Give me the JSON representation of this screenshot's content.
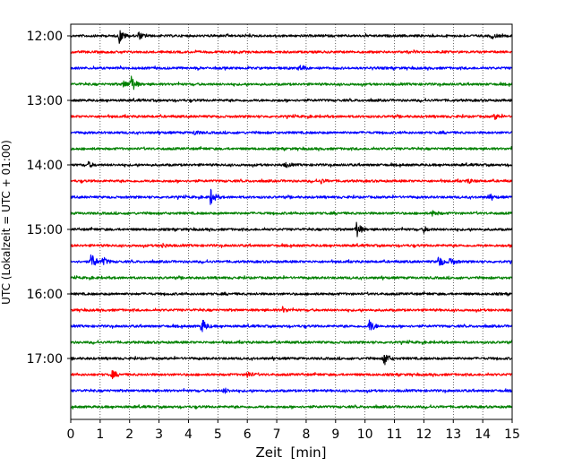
{
  "chart_data": {
    "type": "line",
    "title": "",
    "xlabel": "Zeit  [min]",
    "ylabel": "UTC (Lokalzeit = UTC + 01:00)",
    "xlim": [
      0,
      15
    ],
    "x_ticks": [
      0,
      1,
      2,
      3,
      4,
      5,
      6,
      7,
      8,
      9,
      10,
      11,
      12,
      13,
      14,
      15
    ],
    "x_grid": "vertical dotted at each minute",
    "y_ticks": [
      "12:00",
      "13:00",
      "14:00",
      "15:00",
      "16:00",
      "17:00"
    ],
    "colors": [
      "#000000",
      "#ff0000",
      "#0000ff",
      "#008000"
    ],
    "series": [
      {
        "start": "12:00",
        "color": "#000000",
        "events": [
          {
            "t": 1.65,
            "amp": 8
          },
          {
            "t": 2.3,
            "amp": 4
          },
          {
            "t": 14.3,
            "amp": 3
          }
        ]
      },
      {
        "start": "12:15",
        "color": "#ff0000",
        "events": []
      },
      {
        "start": "12:30",
        "color": "#0000ff",
        "events": [
          {
            "t": 7.8,
            "amp": 3
          }
        ]
      },
      {
        "start": "12:45",
        "color": "#008000",
        "events": [
          {
            "t": 2.05,
            "amp": 10
          },
          {
            "t": 1.8,
            "amp": 4
          }
        ]
      },
      {
        "start": "13:00",
        "color": "#000000",
        "events": []
      },
      {
        "start": "13:15",
        "color": "#ff0000",
        "events": [
          {
            "t": 14.4,
            "amp": 3
          }
        ]
      },
      {
        "start": "13:30",
        "color": "#0000ff",
        "events": [
          {
            "t": 4.2,
            "amp": 2.5
          }
        ]
      },
      {
        "start": "13:45",
        "color": "#008000",
        "events": []
      },
      {
        "start": "14:00",
        "color": "#000000",
        "events": [
          {
            "t": 0.6,
            "amp": 3
          },
          {
            "t": 7.3,
            "amp": 2.5
          }
        ]
      },
      {
        "start": "14:15",
        "color": "#ff0000",
        "events": [
          {
            "t": 8.5,
            "amp": 2.5
          },
          {
            "t": 13.5,
            "amp": 2.5
          }
        ]
      },
      {
        "start": "14:30",
        "color": "#0000ff",
        "events": [
          {
            "t": 4.75,
            "amp": 9
          },
          {
            "t": 14.2,
            "amp": 3
          }
        ]
      },
      {
        "start": "14:45",
        "color": "#008000",
        "events": [
          {
            "t": 12.3,
            "amp": 3
          }
        ]
      },
      {
        "start": "15:00",
        "color": "#000000",
        "events": [
          {
            "t": 9.7,
            "amp": 10
          },
          {
            "t": 12.0,
            "amp": 3
          }
        ]
      },
      {
        "start": "15:15",
        "color": "#ff0000",
        "events": [
          {
            "t": 3.1,
            "amp": 2.5
          }
        ]
      },
      {
        "start": "15:30",
        "color": "#0000ff",
        "events": [
          {
            "t": 0.7,
            "amp": 10
          },
          {
            "t": 1.1,
            "amp": 5
          },
          {
            "t": 12.5,
            "amp": 7
          },
          {
            "t": 12.9,
            "amp": 5
          }
        ]
      },
      {
        "start": "15:45",
        "color": "#008000",
        "events": []
      },
      {
        "start": "16:00",
        "color": "#000000",
        "events": []
      },
      {
        "start": "16:15",
        "color": "#ff0000",
        "events": [
          {
            "t": 7.2,
            "amp": 3
          }
        ]
      },
      {
        "start": "16:30",
        "color": "#0000ff",
        "events": [
          {
            "t": 4.45,
            "amp": 9
          },
          {
            "t": 10.15,
            "amp": 8
          }
        ]
      },
      {
        "start": "16:45",
        "color": "#008000",
        "events": []
      },
      {
        "start": "17:00",
        "color": "#000000",
        "events": [
          {
            "t": 10.65,
            "amp": 8
          }
        ]
      },
      {
        "start": "17:15",
        "color": "#ff0000",
        "events": [
          {
            "t": 1.4,
            "amp": 4
          },
          {
            "t": 6.0,
            "amp": 4
          }
        ]
      },
      {
        "start": "17:30",
        "color": "#0000ff",
        "events": [
          {
            "t": 5.2,
            "amp": 3
          }
        ]
      },
      {
        "start": "17:45",
        "color": "#008000",
        "events": []
      }
    ]
  }
}
